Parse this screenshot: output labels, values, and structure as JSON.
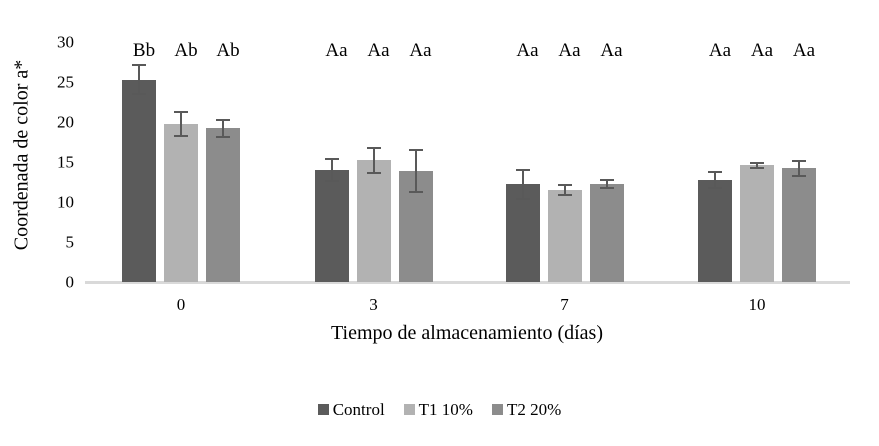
{
  "chart_data": {
    "type": "bar",
    "title": "",
    "ylabel": "Coordenada de color a*",
    "xlabel": "Tiempo de almacenamiento (días)",
    "categories": [
      "0",
      "3",
      "7",
      "10"
    ],
    "ylim": [
      0,
      30
    ],
    "yticks": [
      0,
      5,
      10,
      15,
      20,
      25,
      30
    ],
    "grid": false,
    "legend_position": "bottom-center",
    "axis_line_color": "#d9d9d9",
    "error_bar_color": "#595959",
    "series": [
      {
        "name": "Control",
        "color": "#5b5b5b",
        "values": [
          25.3,
          14.0,
          12.2,
          12.8
        ],
        "errors": [
          1.8,
          1.4,
          1.8,
          1.0
        ],
        "letters": [
          "Bb",
          "Aa",
          "Aa",
          "Aa"
        ]
      },
      {
        "name": "T1 10%",
        "color": "#b2b2b2",
        "values": [
          19.8,
          15.2,
          11.5,
          14.6
        ],
        "errors": [
          1.5,
          1.6,
          0.6,
          0.3
        ],
        "letters": [
          "Ab",
          "Aa",
          "Aa",
          "Aa"
        ]
      },
      {
        "name": "T2 20%",
        "color": "#8c8c8c",
        "values": [
          19.2,
          13.9,
          12.3,
          14.2
        ],
        "errors": [
          1.1,
          2.6,
          0.5,
          0.9
        ],
        "letters": [
          "Ab",
          "Aa",
          "Aa",
          "Aa"
        ]
      }
    ]
  }
}
